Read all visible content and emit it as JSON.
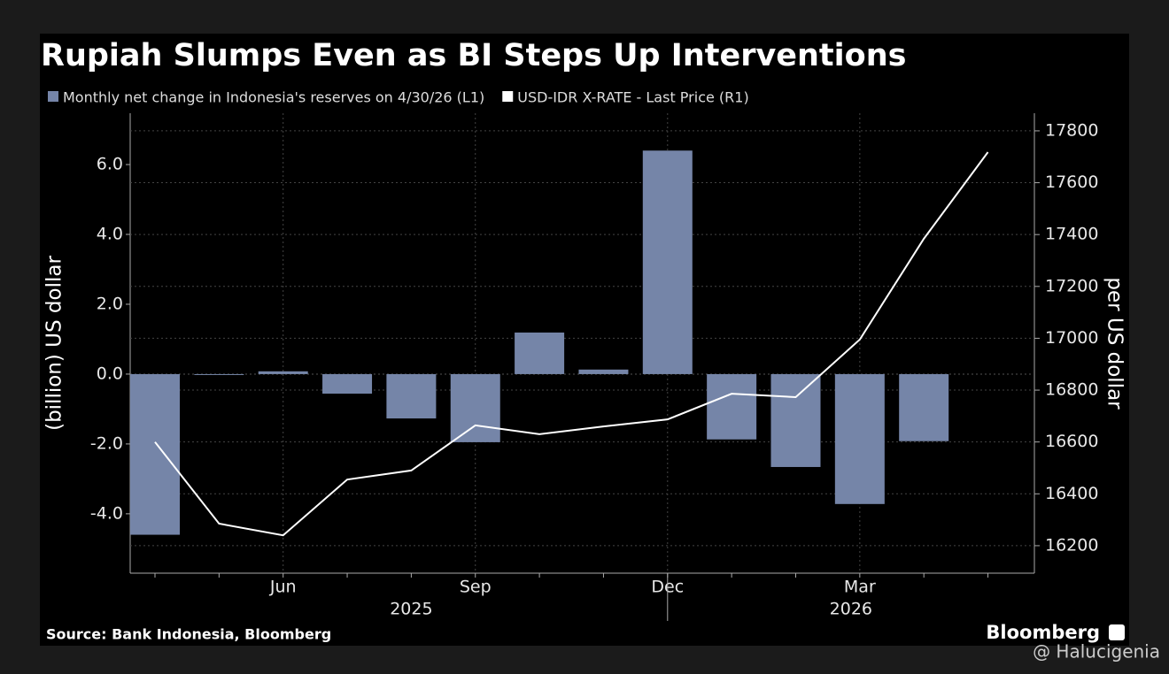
{
  "chart_data": {
    "type": "bar_line",
    "title": "Rupiah Slumps Even as BI Steps Up Interventions",
    "categories": [
      null,
      null,
      "Jun",
      null,
      null,
      "Sep",
      null,
      null,
      "Dec",
      null,
      null,
      "Mar",
      null,
      null
    ],
    "x_years": [
      "2025",
      "2026"
    ],
    "series": [
      {
        "name": "Monthly net change in Indonesia's reserves on 4/30/26 (L1)",
        "type": "bar",
        "axis": "y",
        "color": "#7585a8",
        "values": [
          -4.6,
          -0.02,
          0.08,
          -0.56,
          -1.27,
          -1.95,
          1.19,
          0.13,
          6.4,
          -1.87,
          -2.66,
          -3.72,
          -1.92,
          null
        ]
      },
      {
        "name": "USD-IDR X-RATE - Last Price (R1)",
        "type": "line",
        "axis": "y2",
        "color": "#ffffff",
        "values": [
          16600,
          16285,
          16240,
          16455,
          16490,
          16664,
          16630,
          16660,
          16687,
          16786,
          16773,
          16995,
          17384,
          17718
        ]
      }
    ],
    "ylabel": "(billion) US dollar",
    "y2label": "per US dollar",
    "ylim": [
      -5.7,
      7.47
    ],
    "yticks": [
      {
        "value": -4,
        "label": "-4.0"
      },
      {
        "value": -2,
        "label": "-2.0"
      },
      {
        "value": 0,
        "label": "0.0"
      },
      {
        "value": 2,
        "label": "2.0"
      },
      {
        "value": 4,
        "label": "4.0"
      },
      {
        "value": 6,
        "label": "6.0"
      }
    ],
    "y2lim": [
      16094,
      17868
    ],
    "y2ticks": [
      16200,
      16400,
      16600,
      16800,
      17000,
      17200,
      17400,
      17600,
      17800
    ],
    "grid": true,
    "source": "Source: Bank Indonesia, Bloomberg",
    "brand": "Bloomberg",
    "watermark": "@ Halucigenia"
  }
}
